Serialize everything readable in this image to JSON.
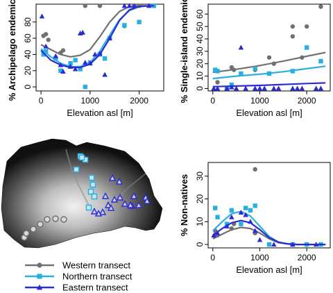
{
  "colors": {
    "western": "#707070",
    "northern": "#29aee0",
    "eastern": "#2b2bd6",
    "axis": "#000000",
    "map_dark": "#0a0a0a",
    "map_light": "#f0f0f0"
  },
  "legend": {
    "entries": [
      {
        "label": "Western transect",
        "color": "#707070",
        "marker": "circle"
      },
      {
        "label": "Northern transect",
        "color": "#29aee0",
        "marker": "square"
      },
      {
        "label": "Eastern transect",
        "color": "#2b2bd6",
        "marker": "triangle"
      }
    ]
  },
  "map": {
    "western_sites": 7,
    "northern_sites": 9,
    "eastern_sites": 17
  },
  "chart_data": [
    {
      "type": "scatter",
      "panel": "top-left",
      "xlabel": "Elevation asl [m]",
      "ylabel": "% Archipelago endemics",
      "xlim": [
        -100,
        2500
      ],
      "ylim": [
        -5,
        102
      ],
      "xticks": [
        0,
        1000,
        2000
      ],
      "yticks": [
        0,
        20,
        40,
        60,
        80
      ],
      "series": [
        {
          "name": "Western transect",
          "color": "#707070",
          "marker": "circle",
          "points": [
            [
              50,
              63
            ],
            [
              100,
              65
            ],
            [
              150,
              58
            ],
            [
              400,
              42
            ],
            [
              450,
              45
            ],
            [
              900,
              100
            ],
            [
              1200,
              100
            ],
            [
              1700,
              75
            ],
            [
              1900,
              100
            ],
            [
              2000,
              100
            ],
            [
              2300,
              100
            ]
          ],
          "curve": [
            [
              0,
              52
            ],
            [
              200,
              46
            ],
            [
              400,
              40
            ],
            [
              600,
              37
            ],
            [
              800,
              39
            ],
            [
              1000,
              46
            ],
            [
              1200,
              62
            ],
            [
              1400,
              80
            ],
            [
              1600,
              93
            ],
            [
              1800,
              99
            ],
            [
              2000,
              100
            ],
            [
              2200,
              100
            ],
            [
              2300,
              100
            ]
          ]
        },
        {
          "name": "Northern transect",
          "color": "#29aee0",
          "marker": "square",
          "points": [
            [
              50,
              40
            ],
            [
              100,
              44
            ],
            [
              300,
              35
            ],
            [
              400,
              20
            ],
            [
              600,
              29
            ],
            [
              700,
              33
            ],
            [
              800,
              22
            ],
            [
              900,
              0
            ],
            [
              1000,
              30
            ],
            [
              1200,
              40
            ],
            [
              1300,
              35
            ],
            [
              1400,
              60
            ],
            [
              1700,
              76
            ],
            [
              2000,
              80
            ],
            [
              2300,
              100
            ]
          ],
          "curve": [
            [
              0,
              47
            ],
            [
              200,
              37
            ],
            [
              400,
              29
            ],
            [
              600,
              25
            ],
            [
              800,
              25
            ],
            [
              1000,
              30
            ],
            [
              1200,
              44
            ],
            [
              1400,
              64
            ],
            [
              1600,
              83
            ],
            [
              1800,
              94
            ],
            [
              2000,
              99
            ],
            [
              2200,
              100
            ],
            [
              2300,
              100
            ]
          ]
        },
        {
          "name": "Eastern transect",
          "color": "#2b2bd6",
          "marker": "triangle",
          "points": [
            [
              20,
              87
            ],
            [
              100,
              50
            ],
            [
              300,
              38
            ],
            [
              400,
              27
            ],
            [
              450,
              19
            ],
            [
              600,
              25
            ],
            [
              700,
              22
            ],
            [
              800,
              66
            ],
            [
              850,
              67
            ],
            [
              900,
              30
            ],
            [
              1000,
              29
            ],
            [
              1100,
              40
            ],
            [
              1200,
              41
            ],
            [
              1300,
              15
            ],
            [
              1400,
              60
            ],
            [
              1700,
              100
            ],
            [
              1800,
              100
            ],
            [
              1900,
              100
            ],
            [
              2200,
              100
            ]
          ],
          "curve": [
            [
              0,
              45
            ],
            [
              200,
              33
            ],
            [
              400,
              27
            ],
            [
              600,
              24
            ],
            [
              800,
              24
            ],
            [
              1000,
              28
            ],
            [
              1200,
              40
            ],
            [
              1400,
              60
            ],
            [
              1600,
              82
            ],
            [
              1800,
              95
            ],
            [
              2000,
              99
            ],
            [
              2200,
              100
            ],
            [
              2300,
              100
            ]
          ]
        }
      ]
    },
    {
      "type": "scatter",
      "panel": "top-right",
      "xlabel": "Elevation asl [m]",
      "ylabel": "% Single-island endemics",
      "xlim": [
        -100,
        2500
      ],
      "ylim": [
        -2,
        68
      ],
      "xticks": [
        0,
        1000,
        2000
      ],
      "yticks": [
        0,
        10,
        20,
        30,
        40,
        50,
        60
      ],
      "series": [
        {
          "name": "Western transect",
          "color": "#707070",
          "marker": "circle",
          "points": [
            [
              100,
              5
            ],
            [
              400,
              17
            ],
            [
              450,
              15
            ],
            [
              900,
              15
            ],
            [
              1200,
              25
            ],
            [
              1700,
              50
            ],
            [
              1700,
              42
            ],
            [
              1900,
              25
            ],
            [
              2000,
              50
            ],
            [
              2300,
              66
            ],
            [
              1300,
              20
            ]
          ],
          "curve": [
            [
              0,
              13
            ],
            [
              500,
              15.5
            ],
            [
              1000,
              18.5
            ],
            [
              1500,
              22
            ],
            [
              2000,
              26
            ],
            [
              2400,
              29
            ]
          ]
        },
        {
          "name": "Northern transect",
          "color": "#29aee0",
          "marker": "square",
          "points": [
            [
              50,
              15
            ],
            [
              100,
              14
            ],
            [
              300,
              0
            ],
            [
              400,
              3
            ],
            [
              600,
              12
            ],
            [
              900,
              16
            ],
            [
              1200,
              12
            ],
            [
              1700,
              14
            ],
            [
              2000,
              33
            ],
            [
              2300,
              22
            ]
          ],
          "curve": [
            [
              0,
              8
            ],
            [
              500,
              10
            ],
            [
              1000,
              11.5
            ],
            [
              1500,
              13.5
            ],
            [
              2000,
              16
            ],
            [
              2400,
              18
            ]
          ]
        },
        {
          "name": "Eastern transect",
          "color": "#2b2bd6",
          "marker": "triangle",
          "points": [
            [
              20,
              0
            ],
            [
              100,
              0
            ],
            [
              300,
              0
            ],
            [
              400,
              1
            ],
            [
              500,
              0
            ],
            [
              600,
              33
            ],
            [
              700,
              0
            ],
            [
              900,
              0
            ],
            [
              1000,
              0
            ],
            [
              1100,
              0
            ],
            [
              1300,
              0
            ],
            [
              1400,
              0
            ],
            [
              1700,
              0
            ],
            [
              1800,
              0
            ],
            [
              1900,
              0
            ],
            [
              2200,
              0
            ],
            [
              2300,
              0
            ]
          ],
          "curve": [
            [
              0,
              1.5
            ],
            [
              1000,
              2.5
            ],
            [
              2000,
              4
            ],
            [
              2400,
              4.5
            ]
          ]
        }
      ]
    },
    {
      "type": "scatter",
      "panel": "bottom-right",
      "xlabel": "Elevation asl [m]",
      "ylabel": "% Non-natives",
      "xlim": [
        -100,
        2500
      ],
      "ylim": [
        -1.5,
        36
      ],
      "xticks": [
        0,
        1000,
        2000
      ],
      "yticks": [
        0,
        10,
        20,
        30
      ],
      "series": [
        {
          "name": "Western transect",
          "color": "#707070",
          "marker": "circle",
          "points": [
            [
              50,
              6
            ],
            [
              100,
              4
            ],
            [
              400,
              7
            ],
            [
              450,
              9
            ],
            [
              900,
              33
            ],
            [
              900,
              5
            ],
            [
              1200,
              0
            ],
            [
              1700,
              0
            ],
            [
              2000,
              0
            ],
            [
              2300,
              0
            ]
          ],
          "curve": [
            [
              0,
              2.5
            ],
            [
              200,
              4.5
            ],
            [
              400,
              6.5
            ],
            [
              600,
              7.5
            ],
            [
              800,
              7
            ],
            [
              1000,
              5
            ],
            [
              1200,
              2.5
            ],
            [
              1400,
              0.8
            ],
            [
              1600,
              0.2
            ],
            [
              1800,
              0
            ],
            [
              2400,
              0
            ]
          ]
        },
        {
          "name": "Northern transect",
          "color": "#29aee0",
          "marker": "square",
          "points": [
            [
              50,
              16
            ],
            [
              100,
              12
            ],
            [
              300,
              9
            ],
            [
              400,
              15
            ],
            [
              600,
              9
            ],
            [
              700,
              16
            ],
            [
              800,
              15
            ],
            [
              900,
              17
            ],
            [
              1200,
              0
            ],
            [
              1700,
              0
            ],
            [
              2000,
              0
            ],
            [
              2300,
              0
            ]
          ],
          "curve": [
            [
              0,
              6
            ],
            [
              200,
              10
            ],
            [
              400,
              13.5
            ],
            [
              600,
              14.5
            ],
            [
              800,
              12.5
            ],
            [
              1000,
              8
            ],
            [
              1200,
              3.5
            ],
            [
              1400,
              1
            ],
            [
              1600,
              0.3
            ],
            [
              1800,
              0
            ],
            [
              2400,
              0
            ]
          ]
        },
        {
          "name": "Eastern transect",
          "color": "#2b2bd6",
          "marker": "triangle",
          "points": [
            [
              20,
              4
            ],
            [
              100,
              5
            ],
            [
              300,
              8
            ],
            [
              400,
              12
            ],
            [
              600,
              14
            ],
            [
              700,
              13
            ],
            [
              800,
              10
            ],
            [
              900,
              6
            ],
            [
              1000,
              2
            ],
            [
              1300,
              0
            ],
            [
              1700,
              0
            ],
            [
              2200,
              0
            ]
          ],
          "curve": [
            [
              0,
              4
            ],
            [
              200,
              7
            ],
            [
              400,
              9.5
            ],
            [
              600,
              10.5
            ],
            [
              800,
              9.5
            ],
            [
              1000,
              6.5
            ],
            [
              1200,
              3
            ],
            [
              1400,
              1
            ],
            [
              1600,
              0.2
            ],
            [
              1800,
              0
            ],
            [
              2400,
              0
            ]
          ]
        }
      ]
    }
  ]
}
